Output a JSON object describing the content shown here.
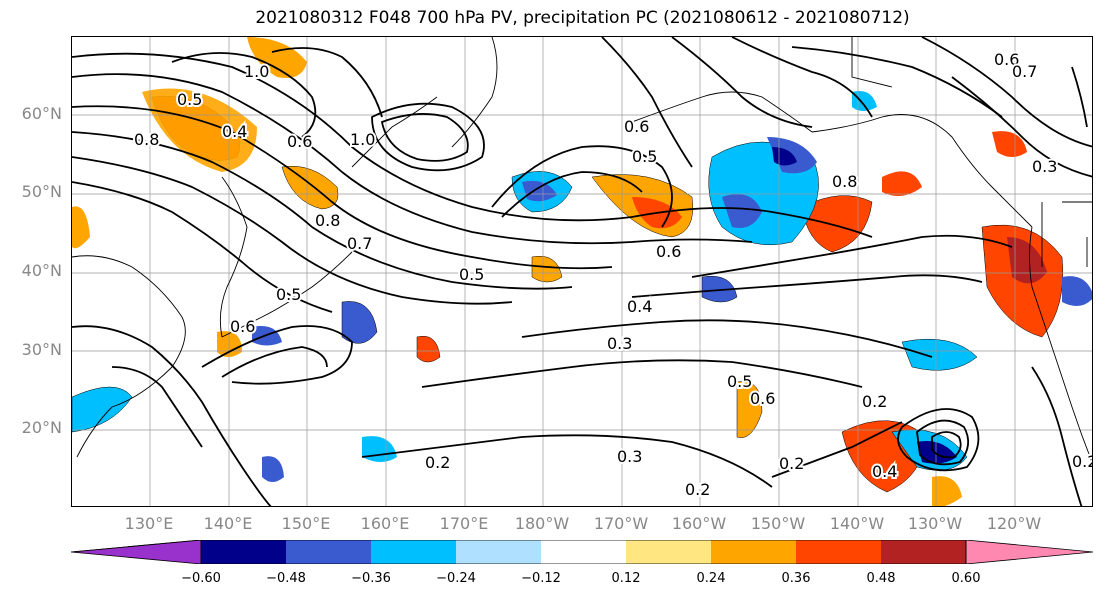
{
  "title": "2021080312 F048 700 hPa PV, precipitation PC (2021080612 - 2021080712)",
  "lat_labels": [
    "60°N",
    "50°N",
    "40°N",
    "30°N",
    "20°N"
  ],
  "lon_labels": [
    "130°E",
    "140°E",
    "150°E",
    "160°E",
    "170°E",
    "180°W",
    "170°W",
    "160°W",
    "150°W",
    "140°W",
    "130°W",
    "120°W"
  ],
  "colorbar": {
    "ticks": [
      "−0.60",
      "−0.48",
      "−0.36",
      "−0.24",
      "−0.12",
      "0.12",
      "0.24",
      "0.36",
      "0.48",
      "0.60"
    ],
    "colors": [
      "#9932cc",
      "#00008b",
      "#3a5bd0",
      "#00bfff",
      "#b0e0ff",
      "#ffffff",
      "#ffe680",
      "#ffa500",
      "#ff4500",
      "#b22222",
      "#ff88b0"
    ]
  },
  "contour_labels": [
    "1.0",
    "0.5",
    "0.8",
    "0.4",
    "0.6",
    "1.0",
    "0.8",
    "0.7",
    "0.5",
    "0.6",
    "0.5",
    "0.6",
    "0.4",
    "0.3",
    "0.5",
    "0.6",
    "0.2",
    "0.2",
    "0.2",
    "0.3",
    "0.6",
    "0.8",
    "0.4",
    "0.2",
    "0.6",
    "0.5",
    "0.7",
    "0.3",
    "0.2"
  ],
  "map": {
    "extent_lon": [
      120,
      250
    ],
    "extent_lat": [
      10,
      70
    ],
    "grid_lon_step": 10,
    "grid_lat_step": 10
  }
}
